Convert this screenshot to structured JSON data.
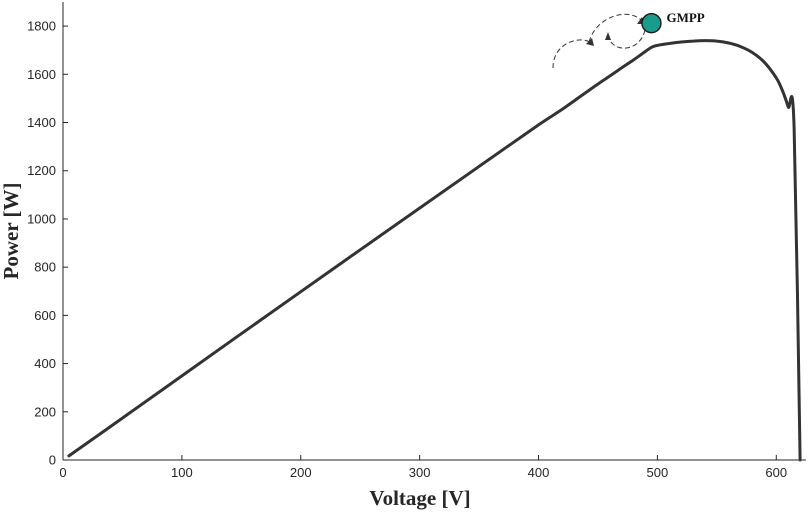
{
  "chart_data": {
    "type": "line",
    "title": "",
    "xlabel": "Voltage [V]",
    "ylabel": "Power [W]",
    "xlim": [
      0,
      625
    ],
    "ylim": [
      0,
      1900
    ],
    "xticks": [
      0,
      100,
      200,
      300,
      400,
      500,
      600
    ],
    "yticks": [
      0,
      200,
      400,
      600,
      800,
      1000,
      1200,
      1400,
      1600,
      1800
    ],
    "grid": false,
    "series": [
      {
        "color": "#333333",
        "x": [
          5,
          50,
          100,
          150,
          200,
          250,
          300,
          350,
          400,
          420,
          440,
          450,
          460,
          470,
          480,
          490,
          495,
          500,
          510,
          520,
          530,
          540,
          550,
          560,
          570,
          580,
          590,
          600,
          605,
          610,
          615,
          620
        ],
        "y": [
          17,
          174,
          349,
          524,
          698,
          872,
          1045,
          1218,
          1390,
          1455,
          1525,
          1560,
          1593,
          1627,
          1660,
          1695,
          1712,
          1720,
          1728,
          1734,
          1738,
          1740,
          1738,
          1730,
          1715,
          1690,
          1650,
          1585,
          1535,
          1465,
          1380,
          0
        ]
      }
    ],
    "annotations": [
      {
        "text": "GMPP",
        "x": 495,
        "y": 1812,
        "marker_color": "#1a9c8c"
      }
    ]
  }
}
